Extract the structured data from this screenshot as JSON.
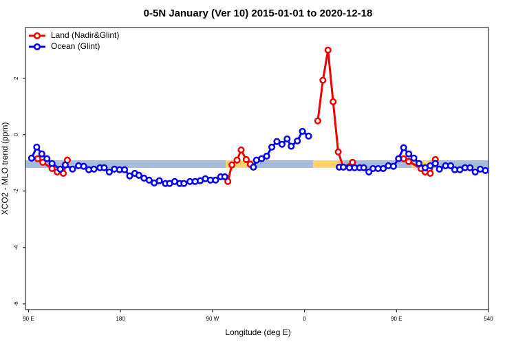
{
  "chart_data": {
    "type": "line",
    "title": "0-5N January (Ver 10)   2015-01-01 to 2020-12-18",
    "x_label": "Longitude (deg E)",
    "y_label": "XCO2 - MLO trend (ppm)",
    "xlim": [
      87,
      540
    ],
    "ylim": [
      -6.2,
      3.8
    ],
    "xticks": [
      {
        "value": 90,
        "label": "90 E"
      },
      180,
      {
        "value": 270,
        "label": "90 W"
      },
      {
        "value": 360,
        "label": "0"
      },
      {
        "value": 450,
        "label": "90 E"
      },
      540
    ],
    "yticks": [
      -6,
      -4,
      -2,
      0,
      2
    ],
    "legend": "top-left",
    "series": [
      {
        "name": "Land (Nadir&Glint)",
        "color": "#ee0000",
        "x": [
          99,
          104,
          113,
          118,
          124,
          128,
          null,
          285,
          289,
          294,
          298,
          303,
          307,
          null,
          373,
          378,
          383,
          388,
          393,
          398,
          407,
          null,
          457,
          462,
          474,
          478,
          483,
          488
        ],
        "values": [
          -0.85,
          -0.98,
          -1.2,
          -1.32,
          -1.37,
          -0.9,
          null,
          -1.66,
          -1.07,
          -0.9,
          -0.54,
          -0.88,
          -1.05,
          null,
          0.49,
          1.93,
          3.0,
          1.17,
          -0.61,
          -1.15,
          -0.98,
          null,
          -0.85,
          -0.95,
          -1.2,
          -1.32,
          -1.37,
          -0.88
        ]
      },
      {
        "name": "Ocean (Glint)",
        "color": "#0000ee",
        "x": [
          93,
          98,
          103,
          108,
          113,
          121,
          126,
          133,
          139,
          144,
          149,
          154,
          160,
          164,
          169,
          174,
          179,
          184,
          189,
          194,
          198,
          203,
          208,
          213,
          218,
          224,
          228,
          233,
          238,
          242,
          248,
          253,
          258,
          263,
          268,
          273,
          278,
          282,
          null,
          310,
          313,
          318,
          323,
          328,
          333,
          338,
          343,
          347,
          353,
          358,
          364,
          null,
          394,
          398,
          404,
          409,
          414,
          418,
          423,
          427,
          432,
          437,
          442,
          447,
          452,
          457,
          462,
          467,
          472,
          478,
          483,
          488,
          492,
          498,
          503,
          507,
          512,
          517,
          522,
          527,
          532,
          537
        ],
        "values": [
          -0.83,
          -0.44,
          -0.68,
          -0.85,
          -1.02,
          -1.22,
          -1.07,
          -1.22,
          -1.1,
          -1.12,
          -1.24,
          -1.22,
          -1.17,
          -1.17,
          -1.32,
          -1.22,
          -1.24,
          -1.24,
          -1.46,
          -1.37,
          -1.44,
          -1.54,
          -1.61,
          -1.71,
          -1.63,
          -1.73,
          -1.73,
          -1.66,
          -1.73,
          -1.73,
          -1.66,
          -1.66,
          -1.63,
          -1.56,
          -1.61,
          -1.61,
          -1.49,
          -1.49,
          null,
          -1.15,
          -0.9,
          -0.85,
          -0.76,
          -0.44,
          -0.24,
          -0.34,
          -0.15,
          -0.41,
          -0.22,
          0.12,
          -0.05,
          null,
          -1.15,
          -1.15,
          -1.17,
          -1.17,
          -1.17,
          -1.17,
          -1.32,
          -1.2,
          -1.2,
          -1.2,
          -1.1,
          -1.12,
          -0.85,
          -0.46,
          -0.68,
          -0.83,
          -1.02,
          -1.17,
          -1.1,
          -1.02,
          -1.22,
          -1.1,
          -1.1,
          -1.24,
          -1.24,
          -1.17,
          -1.17,
          -1.32,
          -1.22,
          -1.27
        ]
      }
    ]
  }
}
